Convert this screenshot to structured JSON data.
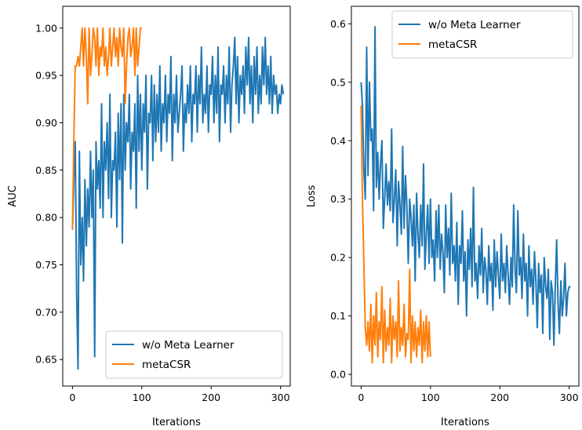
{
  "chart_data": [
    {
      "type": "line",
      "xlabel": "Iterations",
      "ylabel": "AUC",
      "xlim": [
        -14,
        314
      ],
      "ylim": [
        0.622,
        1.023
      ],
      "xticks": [
        0,
        100,
        200,
        300
      ],
      "xtick_labels": [
        "0",
        "100",
        "200",
        "300"
      ],
      "yticks": [
        0.65,
        0.7,
        0.75,
        0.8,
        0.85,
        0.9,
        0.95,
        1.0
      ],
      "ytick_labels": [
        "0.65",
        "0.70",
        "0.75",
        "0.80",
        "0.85",
        "0.90",
        "0.95",
        "1.00"
      ],
      "legend_position": "lower-right",
      "grid": false,
      "series": [
        {
          "name": "w/o Meta Learner",
          "color": "#1f77b4",
          "x_start": 0,
          "x_step": 2,
          "y": [
            0.787,
            0.84,
            0.88,
            0.72,
            0.64,
            0.87,
            0.75,
            0.8,
            0.733,
            0.84,
            0.77,
            0.83,
            0.79,
            0.87,
            0.8,
            0.85,
            0.653,
            0.88,
            0.83,
            0.86,
            0.81,
            0.92,
            0.8,
            0.88,
            0.85,
            0.9,
            0.82,
            0.93,
            0.8,
            0.86,
            0.85,
            0.89,
            0.79,
            0.91,
            0.84,
            0.92,
            0.773,
            0.93,
            0.85,
            0.9,
            0.88,
            0.93,
            0.83,
            0.89,
            0.87,
            0.92,
            0.81,
            0.95,
            0.87,
            0.93,
            0.85,
            0.92,
            0.89,
            0.95,
            0.83,
            0.91,
            0.9,
            0.95,
            0.86,
            0.94,
            0.88,
            0.93,
            0.89,
            0.96,
            0.87,
            0.92,
            0.9,
            0.95,
            0.88,
            0.93,
            0.91,
            0.97,
            0.86,
            0.93,
            0.9,
            0.95,
            0.89,
            0.91,
            0.93,
            0.96,
            0.87,
            0.92,
            0.9,
            0.94,
            0.91,
            0.96,
            0.88,
            0.93,
            0.92,
            0.96,
            0.89,
            0.95,
            0.92,
            0.98,
            0.9,
            0.93,
            0.91,
            0.96,
            0.89,
            0.94,
            0.93,
            0.97,
            0.9,
            0.95,
            0.91,
            0.98,
            0.88,
            0.94,
            0.93,
            0.96,
            0.9,
            0.95,
            0.92,
            0.98,
            0.89,
            0.94,
            0.96,
            0.99,
            0.92,
            0.97,
            0.9,
            0.95,
            0.93,
            0.96,
            0.91,
            0.98,
            0.94,
            0.99,
            0.92,
            0.96,
            0.9,
            0.97,
            0.93,
            0.98,
            0.91,
            0.95,
            0.92,
            0.98,
            0.94,
            0.99,
            0.93,
            0.96,
            0.92,
            0.97,
            0.91,
            0.95,
            0.93,
            0.94,
            0.91,
            0.93,
            0.92,
            0.94,
            0.93
          ]
        },
        {
          "name": "metaCSR",
          "color": "#ff7f0e",
          "x_start": 0,
          "x_step": 2,
          "y": [
            0.787,
            0.88,
            0.96,
            0.96,
            0.97,
            0.96,
            0.98,
            1.0,
            0.96,
            1.0,
            0.97,
            0.92,
            1.0,
            0.95,
            0.97,
            1.0,
            0.99,
            0.96,
            1.0,
            0.95,
            0.98,
            0.97,
            1.0,
            0.96,
            0.98,
            0.95,
            0.97,
            1.0,
            0.96,
            0.98,
            1.0,
            0.97,
            0.99,
            0.96,
            1.0,
            0.98,
            0.97,
            1.0,
            0.92,
            0.96,
            0.99,
            1.0,
            0.97,
            0.98,
            1.0,
            0.95,
            1.0,
            0.96,
            0.98,
            1.0,
            1.0
          ]
        }
      ]
    },
    {
      "type": "line",
      "xlabel": "Iterations",
      "ylabel": "Loss",
      "xlim": [
        -14,
        314
      ],
      "ylim": [
        -0.02,
        0.63
      ],
      "xticks": [
        0,
        100,
        200,
        300
      ],
      "xtick_labels": [
        "0",
        "100",
        "200",
        "300"
      ],
      "yticks": [
        0.0,
        0.1,
        0.2,
        0.3,
        0.4,
        0.5,
        0.6
      ],
      "ytick_labels": [
        "0.0",
        "0.1",
        "0.2",
        "0.3",
        "0.4",
        "0.5",
        "0.6"
      ],
      "legend_position": "upper-right",
      "grid": false,
      "series": [
        {
          "name": "w/o Meta Learner",
          "color": "#1f77b4",
          "x_start": 0,
          "x_step": 2,
          "y": [
            0.5,
            0.46,
            0.35,
            0.3,
            0.56,
            0.34,
            0.5,
            0.4,
            0.42,
            0.28,
            0.595,
            0.32,
            0.38,
            0.3,
            0.36,
            0.4,
            0.25,
            0.3,
            0.36,
            0.29,
            0.33,
            0.28,
            0.42,
            0.26,
            0.3,
            0.35,
            0.22,
            0.33,
            0.29,
            0.24,
            0.39,
            0.25,
            0.34,
            0.29,
            0.19,
            0.3,
            0.27,
            0.22,
            0.29,
            0.16,
            0.31,
            0.24,
            0.2,
            0.29,
            0.22,
            0.36,
            0.18,
            0.24,
            0.29,
            0.19,
            0.3,
            0.2,
            0.23,
            0.16,
            0.28,
            0.2,
            0.29,
            0.18,
            0.24,
            0.21,
            0.14,
            0.29,
            0.2,
            0.25,
            0.17,
            0.31,
            0.19,
            0.22,
            0.16,
            0.26,
            0.12,
            0.22,
            0.19,
            0.28,
            0.16,
            0.21,
            0.1,
            0.23,
            0.18,
            0.25,
            0.15,
            0.32,
            0.16,
            0.19,
            0.13,
            0.22,
            0.17,
            0.25,
            0.14,
            0.2,
            0.18,
            0.12,
            0.22,
            0.16,
            0.19,
            0.11,
            0.23,
            0.15,
            0.21,
            0.17,
            0.13,
            0.24,
            0.16,
            0.19,
            0.14,
            0.22,
            0.17,
            0.12,
            0.2,
            0.15,
            0.29,
            0.18,
            0.14,
            0.28,
            0.17,
            0.2,
            0.13,
            0.24,
            0.16,
            0.19,
            0.1,
            0.22,
            0.15,
            0.18,
            0.12,
            0.21,
            0.16,
            0.08,
            0.19,
            0.14,
            0.17,
            0.07,
            0.2,
            0.15,
            0.13,
            0.18,
            0.06,
            0.16,
            0.14,
            0.05,
            0.15,
            0.23,
            0.12,
            0.07,
            0.16,
            0.1,
            0.13,
            0.19,
            0.1,
            0.14,
            0.15,
            0.15
          ]
        },
        {
          "name": "metaCSR",
          "color": "#ff7f0e",
          "x_start": 0,
          "x_step": 2,
          "y": [
            0.46,
            0.3,
            0.19,
            0.08,
            0.05,
            0.09,
            0.04,
            0.12,
            0.02,
            0.1,
            0.05,
            0.14,
            0.03,
            0.09,
            0.06,
            0.15,
            0.02,
            0.11,
            0.04,
            0.08,
            0.05,
            0.13,
            0.02,
            0.1,
            0.06,
            0.09,
            0.03,
            0.16,
            0.04,
            0.08,
            0.05,
            0.12,
            0.03,
            0.07,
            0.06,
            0.18,
            0.02,
            0.1,
            0.04,
            0.09,
            0.03,
            0.08,
            0.05,
            0.11,
            0.02,
            0.09,
            0.04,
            0.1,
            0.03,
            0.09,
            0.03
          ]
        }
      ]
    }
  ]
}
